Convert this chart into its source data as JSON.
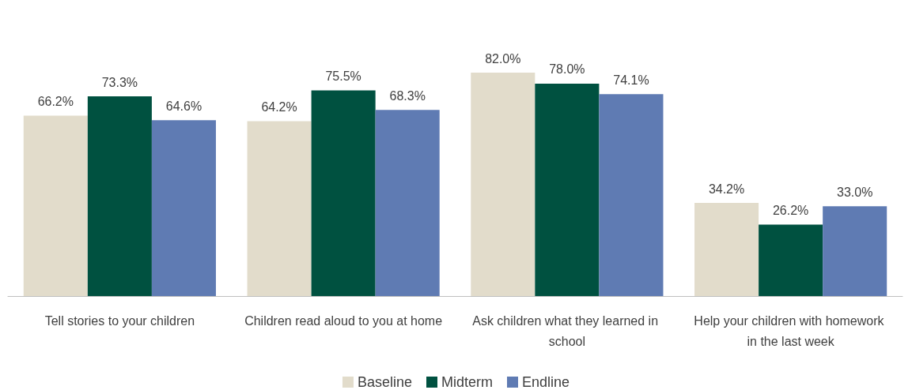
{
  "chart_data": {
    "type": "bar",
    "categories": [
      "Tell stories to your children",
      "Children read aloud to you at home",
      "Ask children what they learned in school",
      "Help your children with homework in the last week"
    ],
    "series": [
      {
        "name": "Baseline",
        "color": "#e2dccb",
        "values": [
          66.2,
          64.2,
          82.0,
          34.2
        ],
        "value_labels": [
          "66.2%",
          "64.2%",
          "82.0%",
          "34.2%"
        ]
      },
      {
        "name": "Midterm",
        "color": "#005140",
        "values": [
          73.3,
          75.5,
          78.0,
          26.2
        ],
        "value_labels": [
          "73.3%",
          "75.5%",
          "78.0%",
          "26.2%"
        ]
      },
      {
        "name": "Endline",
        "color": "#5f7bb3",
        "values": [
          64.6,
          68.3,
          74.1,
          33.0
        ],
        "value_labels": [
          "64.6%",
          "68.3%",
          "74.1%",
          "33.0%"
        ]
      }
    ],
    "legend": "bottom"
  }
}
